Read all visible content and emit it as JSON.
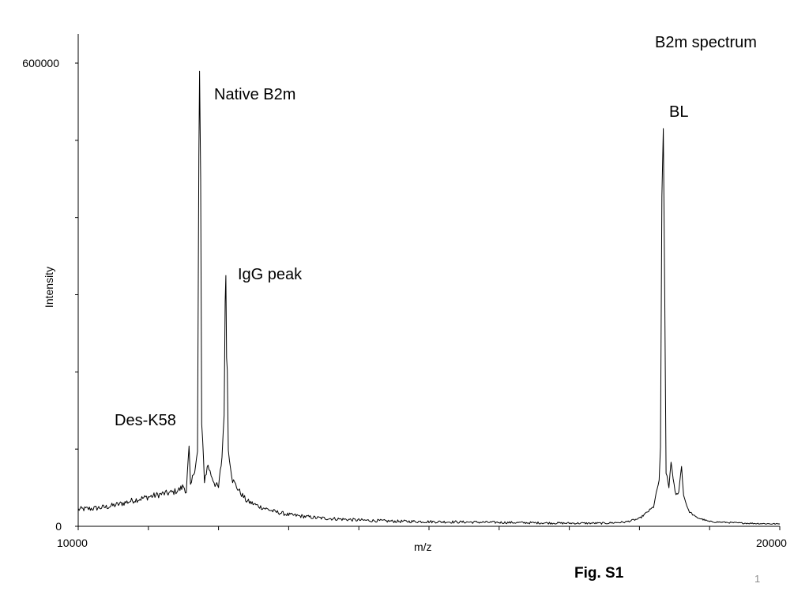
{
  "chart_data": {
    "type": "line",
    "title": "B2m spectrum",
    "xlabel": "m/z",
    "ylabel": "Intensity",
    "xlim": [
      10000,
      20000
    ],
    "ylim": [
      0,
      600000
    ],
    "x_tick_labels": [
      "10000",
      "20000"
    ],
    "y_tick_labels": [
      "0",
      "600000"
    ],
    "grid": false,
    "legend": "none",
    "annotations": [
      {
        "text": "Native B2m",
        "x": 11960,
        "y": 585000
      },
      {
        "text": "IgG peak",
        "x": 12240,
        "y": 327000
      },
      {
        "text": "Des-K58",
        "x": 10520,
        "y": 133000
      },
      {
        "text": "BL",
        "x": 18400,
        "y": 537000
      }
    ],
    "series": [
      {
        "color": "#000000",
        "points": [
          [
            10000,
            22000
          ],
          [
            10200,
            23000
          ],
          [
            10400,
            25000
          ],
          [
            10600,
            29000
          ],
          [
            10800,
            34000
          ],
          [
            11000,
            38000
          ],
          [
            11200,
            42000
          ],
          [
            11350,
            44000
          ],
          [
            11450,
            48000
          ],
          [
            11500,
            52000
          ],
          [
            11540,
            45000
          ],
          [
            11580,
            100000
          ],
          [
            11600,
            50000
          ],
          [
            11660,
            75000
          ],
          [
            11700,
            95000
          ],
          [
            11720,
            470000
          ],
          [
            11730,
            580000
          ],
          [
            11745,
            450000
          ],
          [
            11760,
            130000
          ],
          [
            11800,
            60000
          ],
          [
            11850,
            80000
          ],
          [
            11880,
            70000
          ],
          [
            11950,
            55000
          ],
          [
            12000,
            50000
          ],
          [
            12050,
            90000
          ],
          [
            12080,
            150000
          ],
          [
            12095,
            280000
          ],
          [
            12105,
            330000
          ],
          [
            12115,
            230000
          ],
          [
            12125,
            200000
          ],
          [
            12140,
            100000
          ],
          [
            12200,
            60000
          ],
          [
            12300,
            45000
          ],
          [
            12400,
            33000
          ],
          [
            12600,
            25000
          ],
          [
            12800,
            19000
          ],
          [
            13000,
            15000
          ],
          [
            13400,
            11000
          ],
          [
            13800,
            9000
          ],
          [
            14000,
            8000
          ],
          [
            14500,
            6500
          ],
          [
            15000,
            6000
          ],
          [
            16000,
            5000
          ],
          [
            16500,
            4500
          ],
          [
            17000,
            4000
          ],
          [
            17500,
            4000
          ],
          [
            17800,
            5500
          ],
          [
            18000,
            10000
          ],
          [
            18200,
            25000
          ],
          [
            18280,
            60000
          ],
          [
            18300,
            100000
          ],
          [
            18320,
            420000
          ],
          [
            18340,
            510000
          ],
          [
            18360,
            300000
          ],
          [
            18380,
            70000
          ],
          [
            18420,
            50000
          ],
          [
            18450,
            85000
          ],
          [
            18480,
            60000
          ],
          [
            18520,
            40000
          ],
          [
            18560,
            45000
          ],
          [
            18600,
            78000
          ],
          [
            18630,
            40000
          ],
          [
            18700,
            20000
          ],
          [
            18800,
            12000
          ],
          [
            19000,
            6000
          ],
          [
            19500,
            4000
          ],
          [
            20000,
            3000
          ]
        ]
      }
    ]
  },
  "footer": {
    "figure_label": "Fig. S1",
    "page_number": "1"
  }
}
